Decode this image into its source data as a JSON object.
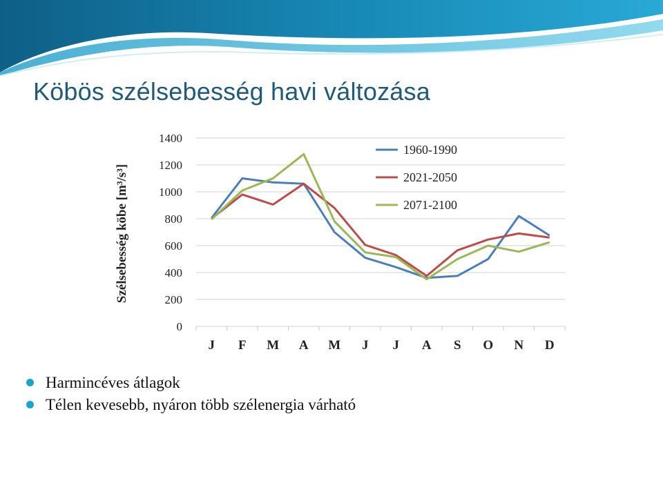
{
  "slide": {
    "title": "Köbös szélsebesség havi változása",
    "bullets": [
      "Harmincéves átlagok",
      "Télen kevesebb, nyáron több szélenergia várható"
    ]
  },
  "colors": {
    "accent": "#1aa6c8",
    "title": "#1f5b78"
  },
  "chart_data": {
    "type": "line",
    "title": "",
    "xlabel": "",
    "ylabel": "Szélsebesség köbe [m³/s³]",
    "categories": [
      "J",
      "F",
      "M",
      "A",
      "M",
      "J",
      "J",
      "A",
      "S",
      "O",
      "N",
      "D"
    ],
    "ylim": [
      0,
      1400
    ],
    "yticks": [
      0,
      200,
      400,
      600,
      800,
      1000,
      1200,
      1400
    ],
    "grid": true,
    "legend_position": "top-right",
    "series": [
      {
        "name": "1960-1990",
        "color": "#4a7ebb",
        "values": [
          805,
          1100,
          1070,
          1060,
          700,
          510,
          440,
          360,
          375,
          500,
          820,
          675
        ]
      },
      {
        "name": "2021-2050",
        "color": "#be4b48",
        "values": [
          800,
          980,
          905,
          1060,
          880,
          605,
          530,
          375,
          565,
          645,
          690,
          660
        ]
      },
      {
        "name": "2071-2100",
        "color": "#98b954",
        "values": [
          795,
          1010,
          1100,
          1280,
          780,
          550,
          515,
          350,
          500,
          600,
          555,
          625
        ]
      }
    ]
  }
}
